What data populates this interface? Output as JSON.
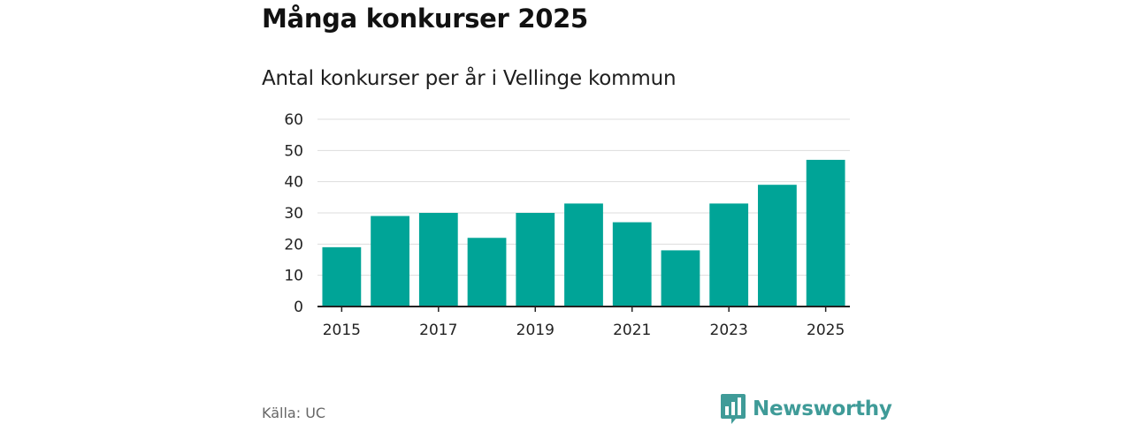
{
  "header": {
    "title": "Många konkurser 2025",
    "subtitle": "Antal konkurser per år i Vellinge kommun"
  },
  "footer": {
    "source": "Källa: UC",
    "brand_name": "Newsworthy",
    "brand_icon": "newsworthy-logo-icon"
  },
  "colors": {
    "bar": "#00a497",
    "grid": "#dddddd",
    "axis": "#222222",
    "brand": "#3f9b98"
  },
  "chart_data": {
    "type": "bar",
    "title": "Många konkurser 2025",
    "subtitle": "Antal konkurser per år i Vellinge kommun",
    "xlabel": "",
    "ylabel": "",
    "categories": [
      "2015",
      "2016",
      "2017",
      "2018",
      "2019",
      "2020",
      "2021",
      "2022",
      "2023",
      "2024",
      "2025"
    ],
    "values": [
      19,
      29,
      30,
      22,
      30,
      33,
      27,
      18,
      33,
      39,
      47
    ],
    "x_tick_labels": [
      "2015",
      "2017",
      "2019",
      "2021",
      "2023",
      "2025"
    ],
    "y_ticks": [
      0,
      10,
      20,
      30,
      40,
      50,
      60
    ],
    "ylim": [
      0,
      60
    ],
    "grid": true,
    "legend": "none"
  }
}
